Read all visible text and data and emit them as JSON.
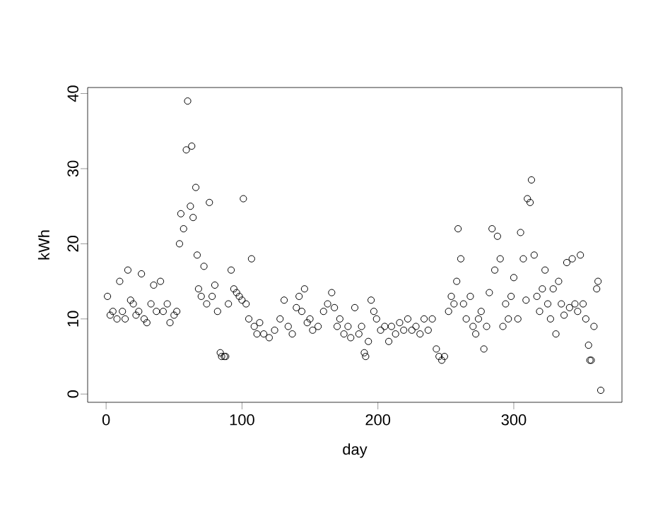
{
  "chart_data": {
    "type": "scatter",
    "xlabel": "day",
    "ylabel": "kWh",
    "marker": "circle",
    "color": "#000000",
    "x": [
      1,
      3,
      5,
      8,
      10,
      12,
      14,
      16,
      18,
      20,
      22,
      24,
      26,
      28,
      30,
      33,
      35,
      37,
      40,
      42,
      45,
      47,
      50,
      52,
      54,
      55,
      57,
      59,
      60,
      62,
      63,
      64,
      66,
      67,
      68,
      70,
      72,
      74,
      76,
      78,
      80,
      82,
      84,
      85,
      87,
      88,
      90,
      92,
      94,
      96,
      98,
      100,
      101,
      103,
      105,
      107,
      109,
      111,
      113,
      116,
      120,
      124,
      128,
      131,
      134,
      137,
      140,
      142,
      144,
      146,
      148,
      150,
      152,
      156,
      160,
      163,
      166,
      168,
      170,
      172,
      175,
      178,
      180,
      183,
      186,
      188,
      190,
      191,
      193,
      195,
      197,
      199,
      202,
      205,
      208,
      210,
      213,
      216,
      219,
      222,
      225,
      228,
      231,
      234,
      237,
      240,
      243,
      245,
      247,
      249,
      252,
      254,
      256,
      258,
      259,
      261,
      263,
      265,
      268,
      270,
      272,
      274,
      276,
      278,
      280,
      282,
      284,
      286,
      288,
      290,
      292,
      294,
      296,
      298,
      300,
      303,
      305,
      307,
      309,
      310,
      312,
      313,
      315,
      317,
      319,
      321,
      323,
      325,
      327,
      329,
      331,
      333,
      335,
      337,
      339,
      341,
      343,
      345,
      347,
      349,
      351,
      353,
      355,
      356,
      357,
      359,
      361,
      362,
      364
    ],
    "values": [
      13,
      10.5,
      11,
      10,
      15,
      11,
      10,
      16.5,
      12.5,
      12,
      10.5,
      11,
      16,
      10,
      9.5,
      12,
      14.5,
      11,
      15,
      11,
      12,
      9.5,
      10.5,
      11,
      20,
      24,
      22,
      32.5,
      39,
      25,
      33,
      23.5,
      27.5,
      18.5,
      14,
      13,
      17,
      12,
      25.5,
      13,
      14.5,
      11,
      5.5,
      5,
      5,
      5,
      12,
      16.5,
      14,
      13.5,
      13,
      12.5,
      26,
      12,
      10,
      18,
      9,
      8,
      9.5,
      8,
      7.5,
      8.5,
      10,
      12.5,
      9,
      8,
      11.5,
      13,
      11,
      14,
      9.5,
      10,
      8.5,
      9,
      11,
      12,
      13.5,
      11.5,
      9,
      10,
      8,
      9,
      7.5,
      11.5,
      8,
      9,
      5.5,
      5,
      7,
      12.5,
      11,
      10,
      8.5,
      9,
      7,
      9,
      8,
      9.5,
      8.5,
      10,
      8.5,
      9,
      8,
      10,
      8.5,
      10,
      6,
      5,
      4.5,
      5,
      11,
      13,
      12,
      15,
      22,
      18,
      12,
      10,
      13,
      9,
      8,
      10,
      11,
      6,
      9,
      13.5,
      22,
      16.5,
      21,
      18,
      9,
      12,
      10,
      13,
      15.5,
      10,
      21.5,
      18,
      12.5,
      26,
      25.5,
      28.5,
      18.5,
      13,
      11,
      14,
      16.5,
      12,
      10,
      14,
      8,
      15,
      12,
      10.5,
      17.5,
      11.5,
      18,
      12,
      11,
      18.5,
      12,
      10,
      6.5,
      4.5,
      4.5,
      9,
      14,
      15,
      0.5
    ],
    "xlim": [
      -13.6,
      379.6
    ],
    "ylim": [
      -1.1,
      40.8
    ],
    "xticks": [
      0,
      100,
      200,
      300
    ],
    "yticks": [
      0,
      10,
      20,
      30,
      40
    ]
  }
}
